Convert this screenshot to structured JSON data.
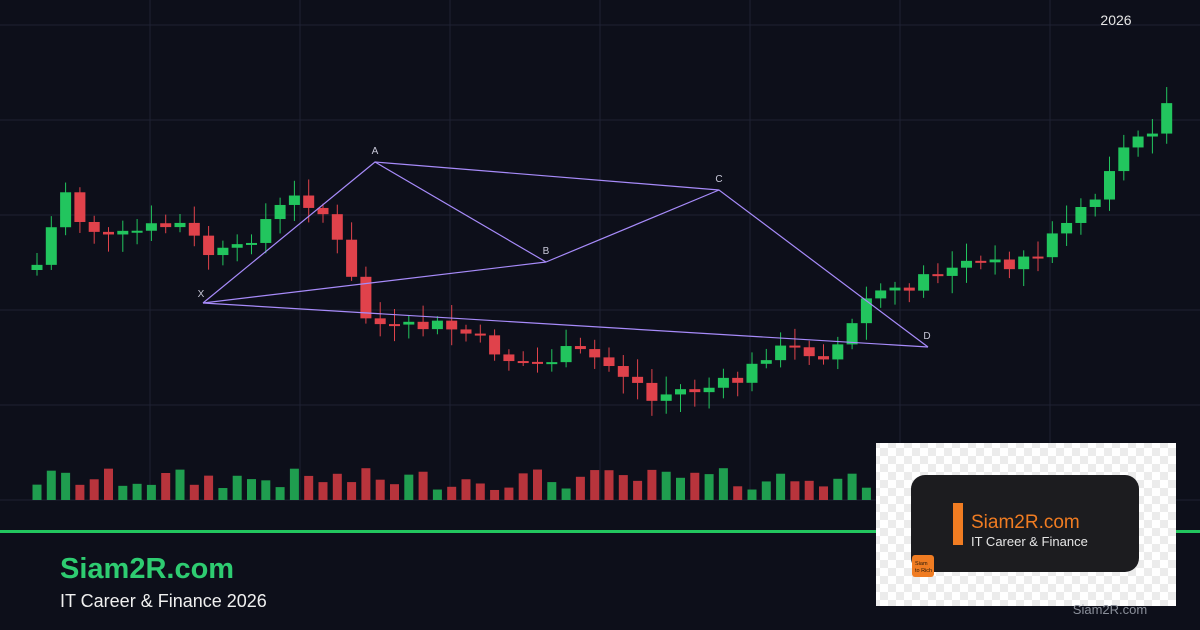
{
  "header": {
    "year": "2026"
  },
  "pattern": {
    "labels": [
      "X",
      "A",
      "B",
      "C",
      "D"
    ]
  },
  "footer": {
    "title": "Siam2R.com",
    "subtitle": "IT Career & Finance 2026"
  },
  "logo": {
    "title": "Siam2R.com",
    "subtitle": "IT Career & Finance",
    "badge": [
      "Siam",
      "to Rich"
    ]
  },
  "watermark": "Siam2R.com"
}
